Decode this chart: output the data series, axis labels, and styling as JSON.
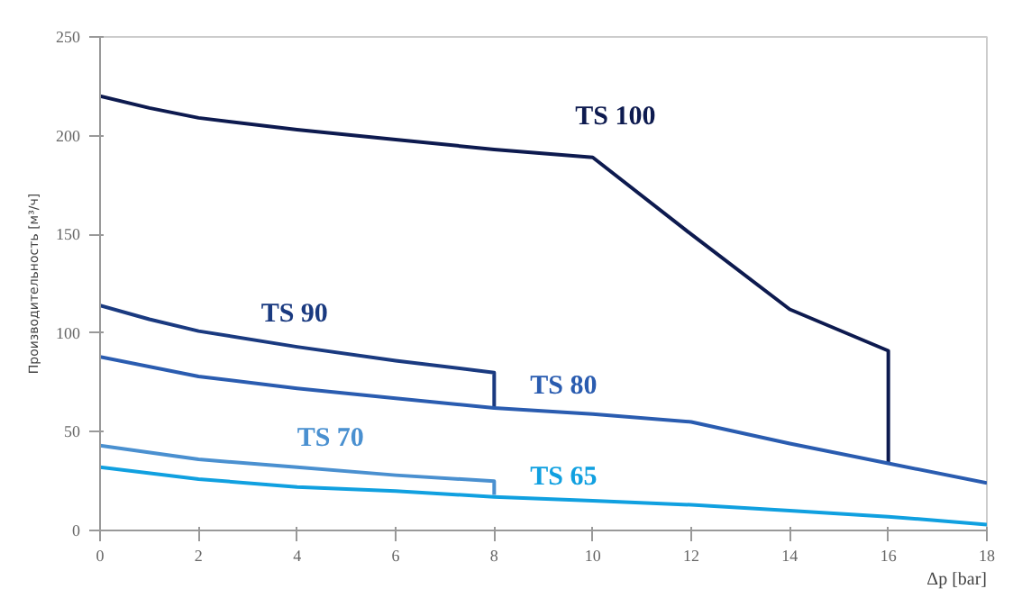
{
  "chart_data": {
    "type": "line",
    "xlabel": "Δp [bar]",
    "ylabel": "Производительность [м³/ч]",
    "xlim": [
      0,
      18
    ],
    "ylim": [
      0,
      250
    ],
    "xticks": [
      0,
      2,
      4,
      6,
      8,
      10,
      12,
      14,
      16,
      18
    ],
    "yticks": [
      0,
      50,
      100,
      150,
      200,
      250
    ],
    "grid": false,
    "marker": "none",
    "line_style": "solid",
    "series": [
      {
        "name": "TS 100",
        "color": "#0d1a4f",
        "x": [
          0,
          1,
          2,
          4,
          6,
          8,
          10,
          12,
          14,
          16,
          16
        ],
        "values": [
          220,
          214,
          209,
          203,
          198,
          193,
          189,
          150,
          112,
          91,
          34
        ]
      },
      {
        "name": "TS 90",
        "color": "#1a3a80",
        "x": [
          0,
          1,
          2,
          4,
          6,
          8,
          8
        ],
        "values": [
          114,
          107,
          101,
          93,
          86,
          80,
          62
        ]
      },
      {
        "name": "TS 80",
        "color": "#2a5cb0",
        "x": [
          0,
          2,
          4,
          6,
          8,
          10,
          12,
          14,
          16,
          18
        ],
        "values": [
          88,
          78,
          72,
          67,
          62,
          59,
          55,
          44,
          34,
          24
        ]
      },
      {
        "name": "TS 70",
        "color": "#4a90d0",
        "x": [
          0,
          2,
          4,
          6,
          8,
          8
        ],
        "values": [
          43,
          36,
          32,
          28,
          25,
          18
        ]
      },
      {
        "name": "TS 65",
        "color": "#10a0e0",
        "x": [
          0,
          2,
          4,
          6,
          8,
          10,
          12,
          14,
          16,
          18
        ],
        "values": [
          32,
          26,
          22,
          20,
          17,
          15,
          13,
          10,
          7,
          3
        ]
      }
    ]
  }
}
